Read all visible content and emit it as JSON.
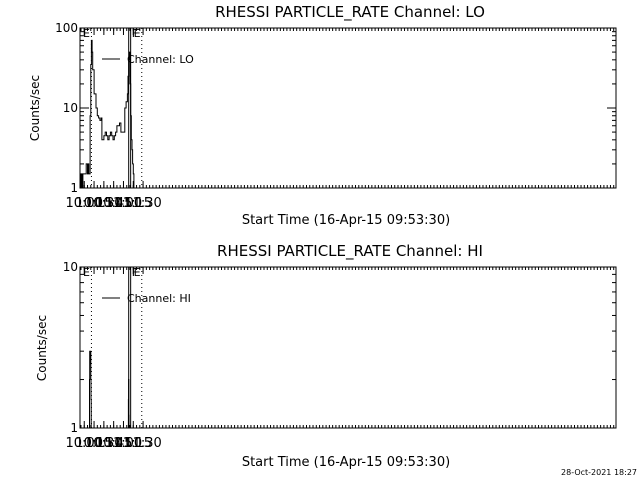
{
  "chart_data": [
    {
      "type": "line",
      "title": "RHESSI PARTICLE_RATE Channel: LO",
      "xlabel": "Start Time (16-Apr-15 09:53:30)",
      "ylabel": "Counts/sec",
      "yscale": "log",
      "ylim": [
        1,
        100
      ],
      "xlim_minutes_of_day": [
        593.5,
        1413.5
      ],
      "x_tick_labels": [
        "10:00",
        "10:15",
        "10:30",
        "10:45",
        "11:00",
        "11:15",
        "11:30"
      ],
      "y_tick_labels": [
        "1",
        "10",
        "100"
      ],
      "legend": {
        "position": "top-left",
        "entries": [
          "Channel: LO"
        ]
      },
      "grid": false,
      "markers": [
        {
          "label": "E",
          "time": "09:53:30",
          "style": "solid"
        },
        {
          "label": "",
          "time": "10:11",
          "style": "dotted"
        },
        {
          "label": "F",
          "time": "11:08",
          "style": "solid"
        },
        {
          "label": "E",
          "time": "11:11",
          "style": "solid"
        },
        {
          "label": "",
          "time": "11:28",
          "style": "dotted"
        }
      ],
      "series": [
        {
          "name": "Channel: LO",
          "x": [
            "09:53:30",
            "09:55",
            "09:56",
            "09:57",
            "09:58",
            "09:59",
            "10:02",
            "10:03",
            "10:05",
            "10:06",
            "10:07",
            "10:08",
            "10:09",
            "10:10",
            "10:11",
            "10:12",
            "10:13",
            "10:15",
            "10:18",
            "10:20",
            "10:22",
            "10:24",
            "10:26",
            "10:27",
            "10:30",
            "10:32",
            "10:34",
            "10:36",
            "10:38",
            "10:40",
            "10:42",
            "10:44",
            "10:46",
            "10:48",
            "10:50",
            "10:52",
            "10:54",
            "10:56",
            "10:58",
            "11:00",
            "11:02",
            "11:04",
            "11:06",
            "11:07",
            "11:08",
            "11:09",
            "11:10",
            "11:11",
            "11:12",
            "11:13",
            "11:14",
            "11:15",
            "11:16",
            "11:18",
            "11:20",
            "11:22",
            "11:24"
          ],
          "values": [
            1.5,
            1,
            1.5,
            1,
            1.5,
            1.5,
            1.5,
            2,
            1.5,
            2,
            1.5,
            1.5,
            8,
            35,
            70,
            50,
            30,
            15,
            10,
            8,
            7.5,
            7,
            7.5,
            4,
            4.5,
            5,
            4.5,
            4,
            4.5,
            5,
            4.5,
            4,
            4.5,
            5,
            6,
            6,
            6.5,
            5,
            5,
            5,
            10,
            12,
            15,
            25,
            40,
            50,
            20,
            8,
            4,
            3,
            2,
            1.5,
            1,
            1,
            1,
            1,
            1
          ]
        }
      ]
    },
    {
      "type": "line",
      "title": "RHESSI PARTICLE_RATE Channel: HI",
      "xlabel": "Start Time (16-Apr-15 09:53:30)",
      "ylabel": "Counts/sec",
      "yscale": "log",
      "ylim": [
        1,
        10
      ],
      "xlim_minutes_of_day": [
        593.5,
        1413.5
      ],
      "x_tick_labels": [
        "10:00",
        "10:15",
        "10:30",
        "10:45",
        "11:00",
        "11:15",
        "11:30"
      ],
      "y_tick_labels": [
        "1",
        "10"
      ],
      "legend": {
        "position": "top-left",
        "entries": [
          "Channel: HI"
        ]
      },
      "grid": false,
      "markers": [
        {
          "label": "E",
          "time": "09:53:30",
          "style": "solid"
        },
        {
          "label": "",
          "time": "10:11",
          "style": "dotted"
        },
        {
          "label": "F",
          "time": "11:08",
          "style": "solid"
        },
        {
          "label": "E",
          "time": "11:11",
          "style": "solid"
        },
        {
          "label": "",
          "time": "11:28",
          "style": "dotted"
        }
      ],
      "series": [
        {
          "name": "Channel: HI",
          "x": [
            "10:07:30",
            "10:08",
            "10:08:20",
            "10:08:40",
            "10:09",
            "10:09:20",
            "10:09:40",
            "10:10",
            "10:10:20",
            "10:10:40",
            "11:07:10",
            "11:07:30",
            "11:07:50",
            "11:08:10",
            "11:08:30"
          ],
          "values": [
            1,
            2,
            3,
            2.5,
            3,
            2.5,
            3,
            2,
            1.5,
            1,
            1,
            1.5,
            2,
            1.2,
            1
          ]
        }
      ]
    }
  ],
  "timestamp": "28-Oct-2021 18:27"
}
